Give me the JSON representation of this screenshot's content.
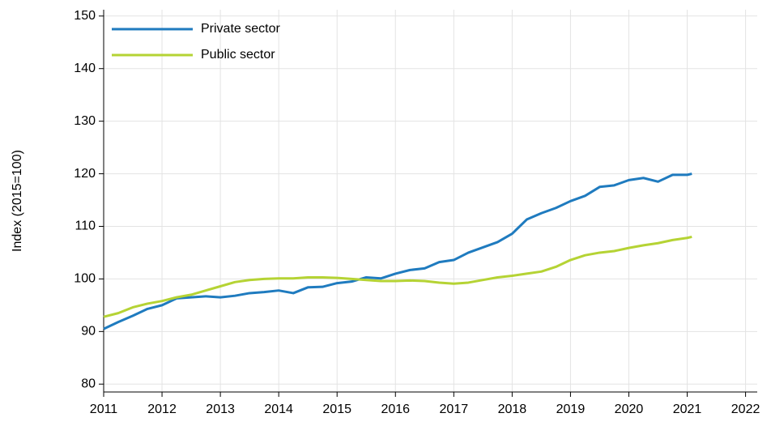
{
  "chart_data": {
    "type": "line",
    "y_label": "Index (2015=100)",
    "x": [
      2011,
      2011.25,
      2011.5,
      2011.75,
      2012,
      2012.25,
      2012.5,
      2012.75,
      2013,
      2013.25,
      2013.5,
      2013.75,
      2014,
      2014.25,
      2014.5,
      2014.75,
      2015,
      2015.25,
      2015.5,
      2015.75,
      2016,
      2016.25,
      2016.5,
      2016.75,
      2017,
      2017.25,
      2017.5,
      2017.75,
      2018,
      2018.25,
      2018.5,
      2018.75,
      2019,
      2019.25,
      2019.5,
      2019.75,
      2020,
      2020.25,
      2020.5,
      2020.75,
      2021,
      2021.08
    ],
    "series": [
      {
        "name": "Private sector",
        "color": "#1f7bbf",
        "values": [
          90.5,
          91.8,
          93,
          94.3,
          95,
          96.3,
          96.5,
          96.7,
          96.5,
          96.8,
          97.3,
          97.5,
          97.8,
          97.3,
          98.4,
          98.5,
          99.2,
          99.5,
          100.3,
          100.1,
          101,
          101.7,
          102,
          103.2,
          103.6,
          105,
          106,
          107,
          108.6,
          111.3,
          112.5,
          113.5,
          114.8,
          115.8,
          117.5,
          117.8,
          118.8,
          119.2,
          118.5,
          119.8,
          119.8,
          120
        ]
      },
      {
        "name": "Public sector",
        "color": "#b5d334",
        "values": [
          92.8,
          93.5,
          94.6,
          95.3,
          95.8,
          96.5,
          97,
          97.8,
          98.6,
          99.4,
          99.8,
          100,
          100.1,
          100.1,
          100.3,
          100.3,
          100.2,
          100,
          99.8,
          99.6,
          99.6,
          99.7,
          99.6,
          99.3,
          99.1,
          99.3,
          99.8,
          100.3,
          100.6,
          101,
          101.4,
          102.3,
          103.6,
          104.5,
          105,
          105.3,
          105.9,
          106.4,
          106.8,
          107.4,
          107.8,
          108
        ]
      }
    ],
    "xlim": [
      2011,
      2022.2
    ],
    "xticks": [
      2011,
      2012,
      2013,
      2014,
      2015,
      2016,
      2017,
      2018,
      2019,
      2020,
      2021,
      2022
    ],
    "ylim": [
      78.5,
      151.2
    ],
    "yticks": [
      80,
      90,
      100,
      110,
      120,
      130,
      140,
      150
    ],
    "grid": true,
    "legend": "upper-left"
  }
}
